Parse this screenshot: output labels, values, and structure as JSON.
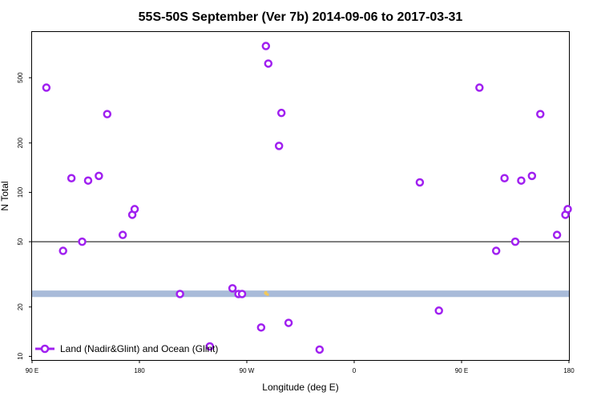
{
  "chart_data": {
    "type": "scatter",
    "title": "55S-50S September (Ver 7b)   2014-09-06 to 2017-03-31",
    "xlabel": "Longitude (deg E)",
    "ylabel": "N Total",
    "x_scale": "linear",
    "y_scale": "log",
    "xlim": [
      90,
      540
    ],
    "ylim": [
      9.5,
      950
    ],
    "x_ticks": [
      {
        "value": 90,
        "label": "90 E"
      },
      {
        "value": 180,
        "label": "180"
      },
      {
        "value": 270,
        "label": "90 W"
      },
      {
        "value": 360,
        "label": "0"
      },
      {
        "value": 450,
        "label": "90 E"
      },
      {
        "value": 540,
        "label": "180"
      }
    ],
    "y_ticks": [
      {
        "value": 10,
        "label": "10"
      },
      {
        "value": 20,
        "label": "20"
      },
      {
        "value": 50,
        "label": "50"
      },
      {
        "value": 100,
        "label": "100"
      },
      {
        "value": 200,
        "label": "200"
      },
      {
        "value": 500,
        "label": "500"
      }
    ],
    "reference_line": {
      "y": 50,
      "color": "#000000"
    },
    "band": {
      "y_range": [
        23.0,
        25.2
      ],
      "color": "#a8bbd9"
    },
    "band_marks": [
      {
        "x": 285.5,
        "y": 24.3
      },
      {
        "x": 286.5,
        "y": 24.0
      },
      {
        "x": 287.5,
        "y": 23.8
      },
      {
        "x": 286.0,
        "y": 24.6
      }
    ],
    "band_mark_color": "#f2c85a",
    "legend": {
      "position": "bottom-left",
      "entry": "Land (Nadir&Glint) and Ocean (Glint)"
    },
    "series": [
      {
        "name": "Land (Nadir&Glint) and Ocean (Glint)",
        "color": "#a020f0",
        "marker": "open-circle",
        "points": [
          {
            "x": 102,
            "y": 435
          },
          {
            "x": 116,
            "y": 44
          },
          {
            "x": 123,
            "y": 122
          },
          {
            "x": 132,
            "y": 50
          },
          {
            "x": 137,
            "y": 118
          },
          {
            "x": 146,
            "y": 126
          },
          {
            "x": 153,
            "y": 300
          },
          {
            "x": 166,
            "y": 55
          },
          {
            "x": 174,
            "y": 73
          },
          {
            "x": 176,
            "y": 79
          },
          {
            "x": 214,
            "y": 24
          },
          {
            "x": 239,
            "y": 11.5
          },
          {
            "x": 258,
            "y": 26
          },
          {
            "x": 263,
            "y": 24
          },
          {
            "x": 266,
            "y": 24
          },
          {
            "x": 282,
            "y": 15
          },
          {
            "x": 286,
            "y": 780
          },
          {
            "x": 288,
            "y": 610
          },
          {
            "x": 297,
            "y": 192
          },
          {
            "x": 299,
            "y": 305
          },
          {
            "x": 305,
            "y": 16
          },
          {
            "x": 331,
            "y": 11
          },
          {
            "x": 415,
            "y": 115
          },
          {
            "x": 431,
            "y": 19
          },
          {
            "x": 465,
            "y": 435
          },
          {
            "x": 479,
            "y": 44
          },
          {
            "x": 486,
            "y": 122
          },
          {
            "x": 495,
            "y": 50
          },
          {
            "x": 500,
            "y": 118
          },
          {
            "x": 509,
            "y": 126
          },
          {
            "x": 516,
            "y": 300
          },
          {
            "x": 530,
            "y": 55
          },
          {
            "x": 537,
            "y": 73
          },
          {
            "x": 539,
            "y": 79
          }
        ]
      }
    ]
  }
}
